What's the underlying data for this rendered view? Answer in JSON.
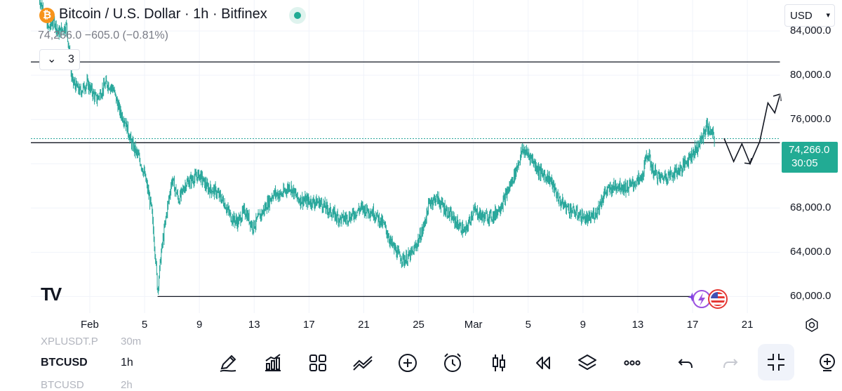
{
  "header": {
    "title": "Bitcoin / U.S. Dollar · 1h · Bitfinex",
    "coin_glyph": "₿",
    "quote": "74,266.0  −605.0 (−0.81%)",
    "indicators_count": "3",
    "currency": "USD",
    "status_color": "#22ab94"
  },
  "price_tag": {
    "price": "74,266.0",
    "countdown": "30:05"
  },
  "chart_data": {
    "type": "candlestick",
    "title": "Bitcoin / U.S. Dollar · 1h · Bitfinex",
    "y_ticks": [
      60000,
      64000,
      68000,
      72000,
      76000,
      80000,
      84000
    ],
    "y_tick_labels": [
      "60,000.0",
      "64,000.0",
      "68,000.0",
      "72,000.0",
      "76,000.0",
      "80,000.0",
      "84,000.0"
    ],
    "ylim": [
      58500,
      86800
    ],
    "x_ticks": [
      {
        "label": "Feb",
        "day": 1
      },
      {
        "label": "5",
        "day": 5
      },
      {
        "label": "9",
        "day": 9
      },
      {
        "label": "13",
        "day": 13
      },
      {
        "label": "17",
        "day": 17
      },
      {
        "label": "21",
        "day": 21
      },
      {
        "label": "25",
        "day": 25
      },
      {
        "label": "Mar",
        "day": 29
      },
      {
        "label": "5",
        "day": 33
      },
      {
        "label": "9",
        "day": 37
      },
      {
        "label": "13",
        "day": 41
      },
      {
        "label": "17",
        "day": 45
      },
      {
        "label": "21",
        "day": 49
      }
    ],
    "xlim_days": [
      -3.3,
      51.4
    ],
    "series_color": "#26a69a",
    "price_path": [
      [
        -2.7,
        87000
      ],
      [
        -2.3,
        85500
      ],
      [
        -2.0,
        84200
      ],
      [
        -1.6,
        85000
      ],
      [
        -1.3,
        83800
      ],
      [
        -0.7,
        84500
      ],
      [
        -0.3,
        79500
      ],
      [
        0.3,
        78500
      ],
      [
        0.8,
        79300
      ],
      [
        1.5,
        77800
      ],
      [
        2.2,
        79300
      ],
      [
        2.7,
        78800
      ],
      [
        3.2,
        76700
      ],
      [
        3.6,
        75800
      ],
      [
        4.0,
        74000
      ],
      [
        4.6,
        72500
      ],
      [
        5.0,
        71000
      ],
      [
        5.5,
        68000
      ],
      [
        5.8,
        63500
      ],
      [
        5.95,
        60500
      ],
      [
        6.2,
        63800
      ],
      [
        6.6,
        67500
      ],
      [
        7.0,
        70600
      ],
      [
        7.5,
        68700
      ],
      [
        8.0,
        70200
      ],
      [
        9.0,
        71000
      ],
      [
        9.6,
        69800
      ],
      [
        10.2,
        69500
      ],
      [
        10.8,
        68500
      ],
      [
        11.3,
        67200
      ],
      [
        11.8,
        66700
      ],
      [
        12.3,
        67800
      ],
      [
        12.9,
        66300
      ],
      [
        13.6,
        67600
      ],
      [
        14.4,
        69300
      ],
      [
        15.0,
        69200
      ],
      [
        15.6,
        70000
      ],
      [
        16.2,
        68800
      ],
      [
        17.0,
        68600
      ],
      [
        17.8,
        68500
      ],
      [
        18.5,
        67700
      ],
      [
        19.3,
        67000
      ],
      [
        20.0,
        67200
      ],
      [
        20.8,
        68000
      ],
      [
        21.7,
        67600
      ],
      [
        22.5,
        66400
      ],
      [
        23.0,
        64800
      ],
      [
        23.6,
        63600
      ],
      [
        24.0,
        63300
      ],
      [
        24.6,
        64000
      ],
      [
        25.3,
        66000
      ],
      [
        25.8,
        68500
      ],
      [
        26.3,
        68900
      ],
      [
        27.0,
        67800
      ],
      [
        27.8,
        66600
      ],
      [
        28.4,
        65800
      ],
      [
        29.0,
        67800
      ],
      [
        29.7,
        67200
      ],
      [
        30.5,
        67300
      ],
      [
        31.2,
        68600
      ],
      [
        32.0,
        71000
      ],
      [
        32.6,
        73300
      ],
      [
        33.2,
        72600
      ],
      [
        33.8,
        71300
      ],
      [
        34.6,
        70600
      ],
      [
        35.3,
        68600
      ],
      [
        36.0,
        67900
      ],
      [
        36.8,
        67300
      ],
      [
        37.4,
        66900
      ],
      [
        38.0,
        67700
      ],
      [
        38.6,
        69400
      ],
      [
        39.5,
        70100
      ],
      [
        40.2,
        69800
      ],
      [
        40.8,
        70300
      ],
      [
        41.3,
        70700
      ],
      [
        41.7,
        73000
      ],
      [
        42.1,
        71400
      ],
      [
        42.6,
        70700
      ],
      [
        43.4,
        71000
      ],
      [
        44.2,
        71600
      ],
      [
        44.8,
        72700
      ],
      [
        45.3,
        73400
      ],
      [
        45.7,
        74300
      ],
      [
        46.0,
        75400
      ],
      [
        46.3,
        74900
      ],
      [
        46.6,
        74266
      ]
    ],
    "h_lines": [
      {
        "price": 81200,
        "from_day": -3.3,
        "to_day": 51.4
      },
      {
        "price": 73900,
        "from_day": -3.3,
        "to_day": 51.4
      },
      {
        "price": 60000,
        "from_day": 5.95,
        "to_day": 45.0
      }
    ],
    "projection_path": [
      [
        47.3,
        74300
      ],
      [
        48.0,
        72200
      ],
      [
        48.6,
        73800
      ],
      [
        49.2,
        72000
      ],
      [
        49.9,
        74000
      ],
      [
        50.5,
        77500
      ],
      [
        51.0,
        76600
      ],
      [
        51.4,
        78300
      ]
    ],
    "current_price": 74266
  },
  "toolbar": {
    "symbols": [
      {
        "symbol": "XPLUSDT.P",
        "timeframe": "30m"
      },
      {
        "symbol": "BTCUSD",
        "timeframe": "1h"
      },
      {
        "symbol": "BTCUSD",
        "timeframe": "2h"
      }
    ],
    "icons": [
      "pencil-icon",
      "chart-bars-icon",
      "grid-icon",
      "trend-lines-icon",
      "plus-circle-icon",
      "alarm-clock-icon",
      "candles-icon",
      "replay-icon",
      "layers-icon",
      "more-icon",
      "undo-icon",
      "redo-icon",
      "collapse-icon",
      "add-indicator-icon"
    ]
  },
  "logo": "TV"
}
